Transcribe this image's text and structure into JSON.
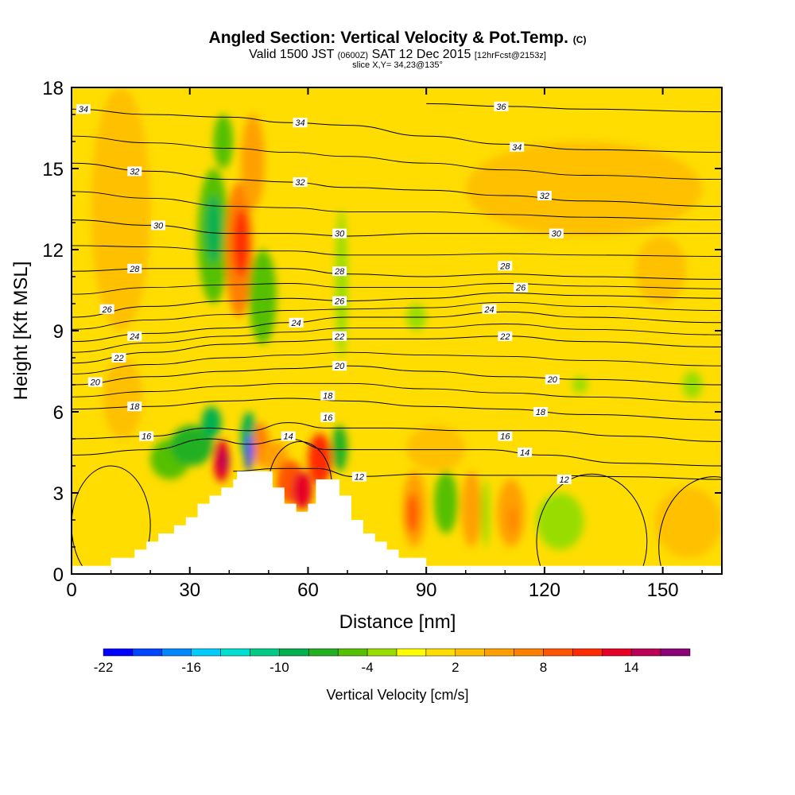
{
  "header": {
    "title": "Angled Section: Vertical Velocity & Pot.Temp.",
    "title_unit": "(C)",
    "subtitle_a": "Valid 1500 JST",
    "subtitle_b": "(0600Z)",
    "subtitle_c": "SAT 12 Dec 2015",
    "subtitle_d": "[12hrFcst@2153z]",
    "slice": "slice X,Y= 34,23@135°"
  },
  "chart_data": {
    "type": "heatmap",
    "xlabel": "Distance [nm]",
    "ylabel": "Height [Kft MSL]",
    "xlim": [
      0,
      165
    ],
    "ylim": [
      0,
      18
    ],
    "x_ticks": [
      0,
      30,
      60,
      90,
      120,
      150
    ],
    "y_ticks": [
      0,
      3,
      6,
      9,
      12,
      15,
      18
    ],
    "colorbar": {
      "label": "Vertical Velocity [cm/s]",
      "tick_labels": [
        "-22",
        "-16",
        "-10",
        "-4",
        "2",
        "8",
        "14"
      ],
      "tick_values": [
        -22,
        -16,
        -10,
        -4,
        2,
        8,
        14
      ],
      "min": -22,
      "max": 18,
      "step": 2,
      "colors": [
        "#0000ff",
        "#0044ff",
        "#0088ff",
        "#00ccff",
        "#00e0d0",
        "#00cc88",
        "#00b050",
        "#22b022",
        "#55c000",
        "#99dd00",
        "#ffff00",
        "#ffdd00",
        "#ffc000",
        "#ffa000",
        "#ff7f00",
        "#ff5500",
        "#ff2a00",
        "#e60026",
        "#bb0055",
        "#8a0077"
      ]
    },
    "background_level": 0,
    "terrain": [
      [
        0,
        0.3
      ],
      [
        10,
        0.3
      ],
      [
        10,
        0.6
      ],
      [
        16,
        0.6
      ],
      [
        16,
        0.9
      ],
      [
        19,
        0.9
      ],
      [
        19,
        1.2
      ],
      [
        22,
        1.2
      ],
      [
        22,
        1.5
      ],
      [
        26,
        1.5
      ],
      [
        26,
        1.8
      ],
      [
        29,
        1.8
      ],
      [
        29,
        2.1
      ],
      [
        32,
        2.1
      ],
      [
        32,
        2.6
      ],
      [
        35,
        2.6
      ],
      [
        35,
        2.9
      ],
      [
        38,
        2.9
      ],
      [
        38,
        3.2
      ],
      [
        41,
        3.2
      ],
      [
        41,
        3.5
      ],
      [
        42,
        3.5
      ],
      [
        42,
        3.8
      ],
      [
        51,
        3.8
      ],
      [
        51,
        3.2
      ],
      [
        54,
        3.2
      ],
      [
        54,
        2.6
      ],
      [
        57,
        2.6
      ],
      [
        57,
        2.3
      ],
      [
        60,
        2.3
      ],
      [
        60,
        2.6
      ],
      [
        62,
        2.6
      ],
      [
        62,
        3.5
      ],
      [
        68,
        3.5
      ],
      [
        68,
        2.9
      ],
      [
        71,
        2.9
      ],
      [
        71,
        2.0
      ],
      [
        74,
        2.0
      ],
      [
        74,
        1.5
      ],
      [
        77,
        1.5
      ],
      [
        77,
        1.2
      ],
      [
        80,
        1.2
      ],
      [
        80,
        0.9
      ],
      [
        83,
        0.9
      ],
      [
        83,
        0.6
      ],
      [
        90,
        0.6
      ],
      [
        90,
        0.3
      ],
      [
        165,
        0.3
      ],
      [
        165,
        0
      ]
    ],
    "vertical_velocity_cells": [
      {
        "x": [
          5,
          20
        ],
        "y": [
          9,
          18
        ],
        "v": 3
      },
      {
        "x": [
          8,
          18
        ],
        "y": [
          5,
          8
        ],
        "v": 3
      },
      {
        "x": [
          20,
          30
        ],
        "y": [
          3.5,
          5
        ],
        "v": -6
      },
      {
        "x": [
          25,
          36
        ],
        "y": [
          4,
          5.5
        ],
        "v": -7
      },
      {
        "x": [
          33,
          38
        ],
        "y": [
          5,
          6.2
        ],
        "v": -9
      },
      {
        "x": [
          36,
          40
        ],
        "y": [
          3.4,
          5
        ],
        "v": 12
      },
      {
        "x": [
          37.5,
          40
        ],
        "y": [
          3.8,
          4.6
        ],
        "v": 15
      },
      {
        "x": [
          43,
          47
        ],
        "y": [
          4.2,
          6
        ],
        "v": -10
      },
      {
        "x": [
          44,
          46
        ],
        "y": [
          3.8,
          5.2
        ],
        "v": -20
      },
      {
        "x": [
          46,
          50
        ],
        "y": [
          4,
          5.6
        ],
        "v": 6
      },
      {
        "x": [
          48,
          55
        ],
        "y": [
          3.8,
          4.9
        ],
        "v": 4
      },
      {
        "x": [
          52,
          59
        ],
        "y": [
          2.6,
          4.2
        ],
        "v": 8
      },
      {
        "x": [
          56,
          61
        ],
        "y": [
          2.4,
          3.8
        ],
        "v": 12
      },
      {
        "x": [
          60,
          66
        ],
        "y": [
          3.3,
          5.2
        ],
        "v": 10
      },
      {
        "x": [
          66,
          70
        ],
        "y": [
          3.8,
          5.5
        ],
        "v": -7
      },
      {
        "x": [
          32,
          40
        ],
        "y": [
          10,
          15
        ],
        "v": -6
      },
      {
        "x": [
          34,
          38
        ],
        "y": [
          11.5,
          14
        ],
        "v": -9
      },
      {
        "x": [
          36,
          41
        ],
        "y": [
          15,
          17
        ],
        "v": -5
      },
      {
        "x": [
          39,
          46
        ],
        "y": [
          9.5,
          14.5
        ],
        "v": 7
      },
      {
        "x": [
          41,
          45
        ],
        "y": [
          11,
          13.5
        ],
        "v": 11
      },
      {
        "x": [
          43,
          49
        ],
        "y": [
          13.5,
          17
        ],
        "v": 5
      },
      {
        "x": [
          45,
          52
        ],
        "y": [
          8.5,
          12
        ],
        "v": -6
      },
      {
        "x": [
          67,
          70
        ],
        "y": [
          8,
          13.5
        ],
        "v": -4
      },
      {
        "x": [
          85,
          90
        ],
        "y": [
          9,
          10
        ],
        "v": -4
      },
      {
        "x": [
          84,
          90
        ],
        "y": [
          1,
          3.8
        ],
        "v": 4
      },
      {
        "x": [
          85,
          88
        ],
        "y": [
          1.5,
          3
        ],
        "v": 8
      },
      {
        "x": [
          92,
          98
        ],
        "y": [
          1.5,
          3.8
        ],
        "v": -6
      },
      {
        "x": [
          99,
          104
        ],
        "y": [
          1,
          3.8
        ],
        "v": 4
      },
      {
        "x": [
          104,
          106
        ],
        "y": [
          1,
          3.5
        ],
        "v": -4
      },
      {
        "x": [
          108,
          115
        ],
        "y": [
          1,
          3.5
        ],
        "v": 4
      },
      {
        "x": [
          111,
          113
        ],
        "y": [
          1.5,
          2.5
        ],
        "v": 7
      },
      {
        "x": [
          118,
          130
        ],
        "y": [
          0.9,
          3
        ],
        "v": -4
      },
      {
        "x": [
          148,
          165
        ],
        "y": [
          0.6,
          3.2
        ],
        "v": 3
      },
      {
        "x": [
          100,
          160
        ],
        "y": [
          12.5,
          16
        ],
        "v": 3
      },
      {
        "x": [
          143,
          156
        ],
        "y": [
          10,
          12.5
        ],
        "v": 3
      },
      {
        "x": [
          155,
          160
        ],
        "y": [
          6.5,
          7.5
        ],
        "v": -4
      },
      {
        "x": [
          127,
          131
        ],
        "y": [
          6.7,
          7.3
        ],
        "v": -4
      },
      {
        "x": [
          85,
          100
        ],
        "y": [
          3.8,
          5.5
        ],
        "v": 3
      }
    ],
    "potential_temperature_contours": [
      {
        "label": "12",
        "points": [
          [
            41,
            3.8
          ],
          [
            52,
            3.9
          ],
          [
            62,
            3.9
          ],
          [
            72,
            3.6
          ],
          [
            90,
            3.7
          ],
          [
            105,
            3.65
          ],
          [
            120,
            3.65
          ],
          [
            140,
            3.6
          ],
          [
            165,
            3.5
          ]
        ]
      },
      {
        "label": "14",
        "points": [
          [
            0,
            4.4
          ],
          [
            20,
            4.6
          ],
          [
            35,
            5.0
          ],
          [
            45,
            4.8
          ],
          [
            55,
            5.0
          ],
          [
            65,
            4.6
          ],
          [
            75,
            4.6
          ],
          [
            90,
            4.6
          ],
          [
            105,
            4.6
          ],
          [
            120,
            4.4
          ],
          [
            140,
            4.1
          ],
          [
            165,
            4.0
          ]
        ]
      },
      {
        "label": "16",
        "points": [
          [
            0,
            5.0
          ],
          [
            20,
            5.1
          ],
          [
            35,
            5.4
          ],
          [
            45,
            5.3
          ],
          [
            55,
            5.6
          ],
          [
            65,
            5.4
          ],
          [
            80,
            5.4
          ],
          [
            100,
            5.3
          ],
          [
            120,
            5.3
          ],
          [
            140,
            5.1
          ],
          [
            165,
            4.9
          ]
        ]
      },
      {
        "label": "18",
        "points": [
          [
            0,
            6.1
          ],
          [
            20,
            6.2
          ],
          [
            40,
            6.4
          ],
          [
            55,
            6.5
          ],
          [
            70,
            6.4
          ],
          [
            90,
            6.2
          ],
          [
            110,
            6.1
          ],
          [
            130,
            5.9
          ],
          [
            165,
            5.7
          ]
        ]
      },
      {
        "label": "20",
        "points": [
          [
            0,
            7.0
          ],
          [
            20,
            7.3
          ],
          [
            40,
            7.5
          ],
          [
            55,
            7.6
          ],
          [
            70,
            7.7
          ],
          [
            90,
            7.5
          ],
          [
            110,
            7.3
          ],
          [
            130,
            7.2
          ],
          [
            165,
            7.0
          ]
        ]
      },
      {
        "label": "22",
        "points": [
          [
            0,
            7.8
          ],
          [
            20,
            8.2
          ],
          [
            40,
            8.5
          ],
          [
            55,
            8.6
          ],
          [
            70,
            8.7
          ],
          [
            90,
            8.7
          ],
          [
            110,
            8.8
          ],
          [
            130,
            8.6
          ],
          [
            165,
            8.4
          ]
        ]
      },
      {
        "label": "24",
        "points": [
          [
            0,
            8.6
          ],
          [
            20,
            8.9
          ],
          [
            40,
            9.1
          ],
          [
            55,
            9.3
          ],
          [
            70,
            9.5
          ],
          [
            90,
            9.5
          ],
          [
            110,
            9.7
          ],
          [
            130,
            9.5
          ],
          [
            165,
            9.3
          ]
        ]
      },
      {
        "label": "26",
        "points": [
          [
            0,
            9.5
          ],
          [
            20,
            9.9
          ],
          [
            40,
            10.1
          ],
          [
            55,
            10.2
          ],
          [
            70,
            10.1
          ],
          [
            90,
            10.2
          ],
          [
            110,
            10.4
          ],
          [
            130,
            10.3
          ],
          [
            165,
            10.2
          ]
        ]
      },
      {
        "label": "28",
        "points": [
          [
            0,
            11.2
          ],
          [
            20,
            11.3
          ],
          [
            40,
            11.3
          ],
          [
            55,
            11.3
          ],
          [
            70,
            11.1
          ],
          [
            90,
            11.0
          ],
          [
            110,
            11.1
          ],
          [
            130,
            11.0
          ],
          [
            165,
            10.9
          ]
        ]
      },
      {
        "label": "30",
        "points": [
          [
            0,
            13.1
          ],
          [
            20,
            12.9
          ],
          [
            40,
            12.6
          ],
          [
            55,
            12.6
          ],
          [
            70,
            12.5
          ],
          [
            90,
            12.6
          ],
          [
            110,
            12.6
          ],
          [
            130,
            12.6
          ],
          [
            165,
            12.6
          ]
        ]
      },
      {
        "label": "32",
        "points": [
          [
            0,
            15.2
          ],
          [
            20,
            14.9
          ],
          [
            40,
            14.6
          ],
          [
            55,
            14.5
          ],
          [
            70,
            14.3
          ],
          [
            90,
            14.2
          ],
          [
            110,
            14.0
          ],
          [
            130,
            13.8
          ],
          [
            165,
            13.6
          ]
        ]
      },
      {
        "label": "34",
        "points": [
          [
            0,
            17.2
          ],
          [
            20,
            17.0
          ],
          [
            40,
            16.9
          ],
          [
            55,
            16.7
          ],
          [
            70,
            16.6
          ],
          [
            90,
            16.2
          ],
          [
            110,
            15.9
          ],
          [
            130,
            15.7
          ],
          [
            165,
            15.6
          ]
        ]
      },
      {
        "label": "36",
        "points": [
          [
            90,
            17.4
          ],
          [
            110,
            17.3
          ],
          [
            130,
            17.2
          ],
          [
            165,
            17.1
          ]
        ]
      }
    ],
    "contour_labels": [
      {
        "text": "34",
        "x": 3,
        "y": 17.2
      },
      {
        "text": "36",
        "x": 109,
        "y": 17.3
      },
      {
        "text": "34",
        "x": 58,
        "y": 16.7
      },
      {
        "text": "34",
        "x": 113,
        "y": 15.8
      },
      {
        "text": "32",
        "x": 16,
        "y": 14.9
      },
      {
        "text": "32",
        "x": 58,
        "y": 14.5
      },
      {
        "text": "32",
        "x": 120,
        "y": 14.0
      },
      {
        "text": "30",
        "x": 22,
        "y": 12.9
      },
      {
        "text": "30",
        "x": 68,
        "y": 12.6
      },
      {
        "text": "30",
        "x": 123,
        "y": 12.6
      },
      {
        "text": "28",
        "x": 16,
        "y": 11.3
      },
      {
        "text": "28",
        "x": 68,
        "y": 11.2
      },
      {
        "text": "28",
        "x": 110,
        "y": 11.4
      },
      {
        "text": "26",
        "x": 114,
        "y": 10.6
      },
      {
        "text": "26",
        "x": 9,
        "y": 9.8
      },
      {
        "text": "26",
        "x": 68,
        "y": 10.1
      },
      {
        "text": "24",
        "x": 106,
        "y": 9.8
      },
      {
        "text": "24",
        "x": 57,
        "y": 9.3
      },
      {
        "text": "24",
        "x": 16,
        "y": 8.8
      },
      {
        "text": "22",
        "x": 68,
        "y": 8.8
      },
      {
        "text": "22",
        "x": 110,
        "y": 8.8
      },
      {
        "text": "22",
        "x": 12,
        "y": 8.0
      },
      {
        "text": "20",
        "x": 68,
        "y": 7.7
      },
      {
        "text": "20",
        "x": 6,
        "y": 7.1
      },
      {
        "text": "20",
        "x": 122,
        "y": 7.2
      },
      {
        "text": "18",
        "x": 16,
        "y": 6.2
      },
      {
        "text": "18",
        "x": 65,
        "y": 6.6
      },
      {
        "text": "18",
        "x": 119,
        "y": 6.0
      },
      {
        "text": "16",
        "x": 19,
        "y": 5.1
      },
      {
        "text": "16",
        "x": 65,
        "y": 5.8
      },
      {
        "text": "16",
        "x": 110,
        "y": 5.1
      },
      {
        "text": "14",
        "x": 55,
        "y": 5.1
      },
      {
        "text": "14",
        "x": 115,
        "y": 4.5
      },
      {
        "text": "12",
        "x": 73,
        "y": 3.6
      },
      {
        "text": "12",
        "x": 125,
        "y": 3.5
      }
    ],
    "closed_contours": [
      {
        "cx": 10,
        "cy": 1.8,
        "rx": 10,
        "ry": 2.2
      },
      {
        "cx": 58,
        "cy": 3.3,
        "rx": 8,
        "ry": 1.6
      },
      {
        "cx": 132,
        "cy": 1.2,
        "rx": 14,
        "ry": 2.5
      },
      {
        "cx": 163,
        "cy": 1.0,
        "rx": 14,
        "ry": 2.6
      }
    ]
  }
}
